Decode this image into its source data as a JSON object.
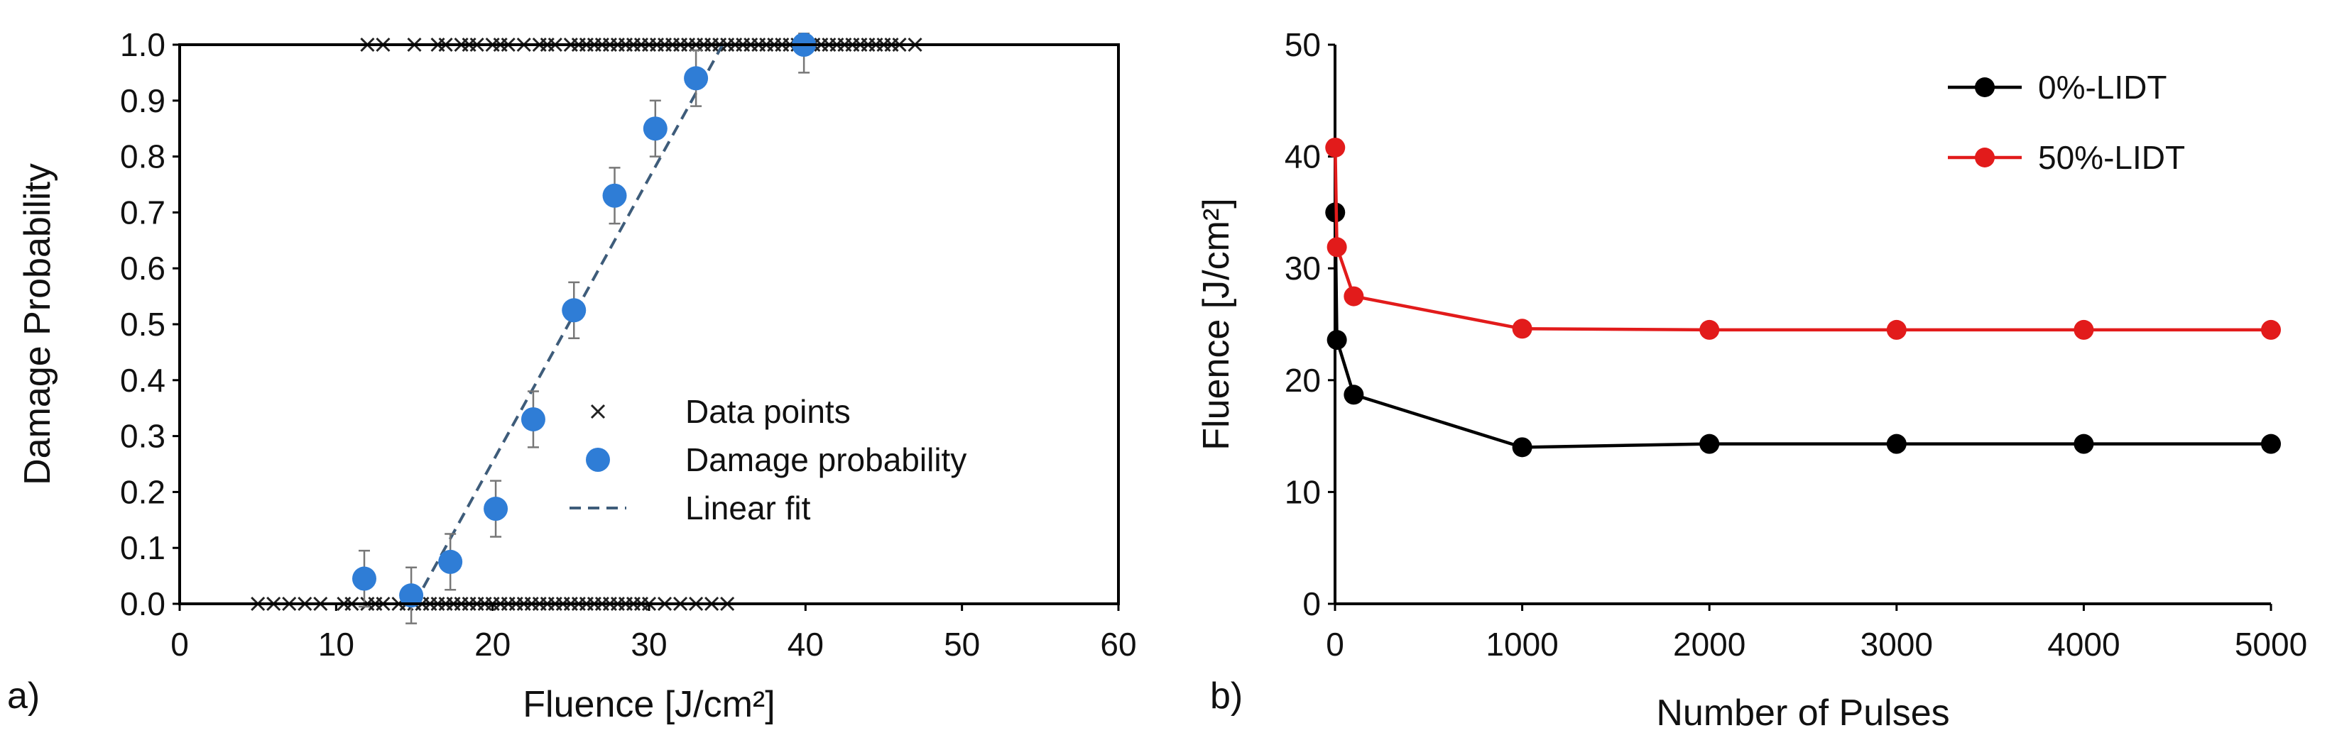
{
  "chart_data": [
    {
      "type": "scatter",
      "panel_label": "a)",
      "title": "",
      "xlabel": "Fluence [J/cm²]",
      "ylabel": "Damage Probability",
      "xlim": [
        0,
        60
      ],
      "ylim": [
        0,
        1.0
      ],
      "xticks": [
        "0",
        "10",
        "20",
        "30",
        "40",
        "50",
        "60"
      ],
      "yticks": [
        "0.0",
        "0.1",
        "0.2",
        "0.3",
        "0.4",
        "0.5",
        "0.6",
        "0.7",
        "0.8",
        "0.9",
        "1.0"
      ],
      "grid": false,
      "legend_position": "center-right",
      "series": [
        {
          "name": "Data points",
          "marker": "x",
          "color": "#222222",
          "points_at_zero": [
            5,
            6,
            7,
            8,
            9,
            10.5,
            11,
            12,
            12.5,
            13,
            14,
            14.5,
            15,
            15.5,
            16,
            16.5,
            17,
            17.5,
            18,
            18.5,
            19,
            19.5,
            20,
            20.5,
            21,
            21.5,
            22,
            22.5,
            23,
            23.5,
            24,
            24.5,
            25,
            25.5,
            26,
            26.5,
            27,
            27.5,
            28,
            28.5,
            29,
            29.5,
            30,
            31,
            32,
            33,
            34,
            35
          ],
          "points_at_one": [
            12,
            13,
            15,
            16.5,
            17,
            18,
            18.5,
            19,
            20,
            20.5,
            21,
            22,
            23,
            23.5,
            24,
            25,
            25.5,
            26,
            26.5,
            27,
            27.5,
            28,
            28.5,
            29,
            29.5,
            30,
            30.5,
            31,
            31.5,
            32,
            32.5,
            33,
            33.5,
            34,
            34.5,
            35,
            35.5,
            36,
            36.5,
            37,
            37.5,
            38,
            38.5,
            39,
            39.5,
            40,
            40.5,
            41,
            41.5,
            42,
            42.5,
            43,
            43.5,
            44,
            44.5,
            45,
            45.5,
            46,
            47
          ]
        },
        {
          "name": "Damage probability",
          "marker": "circle",
          "color": "#2f7dd6",
          "x": [
            11.8,
            14.8,
            17.3,
            20.2,
            22.6,
            25.2,
            27.8,
            30.4,
            33.0,
            39.9
          ],
          "y": [
            0.045,
            0.015,
            0.075,
            0.17,
            0.33,
            0.525,
            0.73,
            0.85,
            0.94,
            1.0
          ],
          "err": [
            0.05,
            0.05,
            0.05,
            0.05,
            0.05,
            0.05,
            0.05,
            0.05,
            0.05,
            0.05
          ]
        },
        {
          "name": "Linear fit",
          "style": "dashed",
          "color": "#3e5c7a",
          "x": [
            15.0,
            34.7
          ],
          "y": [
            0.0,
            1.0
          ]
        }
      ]
    },
    {
      "type": "line",
      "panel_label": "b)",
      "title": "",
      "xlabel": "Number of Pulses",
      "ylabel": "Fluence [J/cm²]",
      "xlim": [
        0,
        5000
      ],
      "ylim": [
        0,
        50
      ],
      "xticks": [
        "0",
        "1000",
        "2000",
        "3000",
        "4000",
        "5000"
      ],
      "yticks": [
        "0",
        "10",
        "20",
        "30",
        "40",
        "50"
      ],
      "grid": false,
      "legend_position": "top-right",
      "series": [
        {
          "name": "0%-LIDT",
          "color": "#000000",
          "x": [
            1,
            10,
            100,
            1000,
            2000,
            3000,
            4000,
            5000
          ],
          "y": [
            35.0,
            23.6,
            18.7,
            14.0,
            14.3,
            14.3,
            14.3,
            14.3
          ]
        },
        {
          "name": "50%-LIDT",
          "color": "#e21b1b",
          "x": [
            1,
            10,
            100,
            1000,
            2000,
            3000,
            4000,
            5000
          ],
          "y": [
            40.8,
            31.9,
            27.5,
            24.6,
            24.5,
            24.5,
            24.5,
            24.5
          ]
        }
      ]
    }
  ]
}
